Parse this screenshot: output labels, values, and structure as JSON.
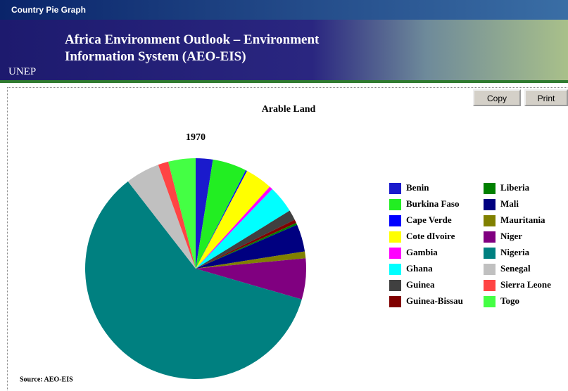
{
  "window": {
    "title": "Country Pie Graph"
  },
  "banner": {
    "line1": "Africa Environment Outlook – Environment",
    "line2": "Information System (AEO-EIS)",
    "logo": "UNEP"
  },
  "buttons": [
    "Copy",
    "Print"
  ],
  "chart_data": {
    "type": "pie",
    "title": "Arable Land",
    "subtitle": "1970",
    "categories": [
      "Benin",
      "Burkina Faso",
      "Cape Verde",
      "Cote dIvoire",
      "Gambia",
      "Ghana",
      "Guinea",
      "Guinea-Bissau",
      "Liberia",
      "Mali",
      "Mauritania",
      "Niger",
      "Nigeria",
      "Senegal",
      "Sierra Leone",
      "Togo"
    ],
    "values": [
      2.5,
      5,
      0.2,
      4,
      0.5,
      4,
      1.5,
      0.5,
      0.3,
      4,
      1,
      6,
      60,
      5,
      1.5,
      4
    ],
    "colors": [
      "#1a1acc",
      "#22ee22",
      "#0000ff",
      "#ffff00",
      "#ff00ff",
      "#00ffff",
      "#404040",
      "#800000",
      "#008000",
      "#000080",
      "#808000",
      "#800080",
      "#008080",
      "#c0c0c0",
      "#ff4444",
      "#44ff44"
    ]
  },
  "source": "Source: AEO-EIS"
}
